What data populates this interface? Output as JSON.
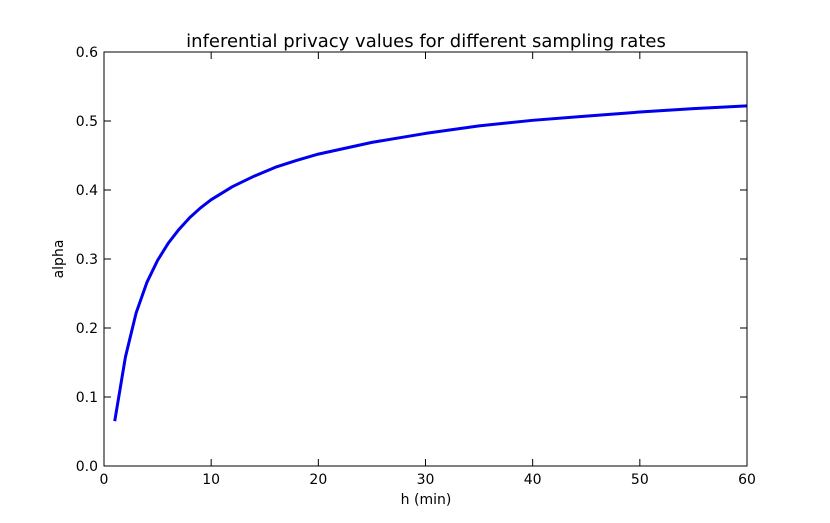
{
  "chart_data": {
    "type": "line",
    "title": "inferential privacy values for different sampling rates",
    "xlabel": "h (min)",
    "ylabel": "alpha",
    "xlim": [
      0,
      60
    ],
    "ylim": [
      0.0,
      0.6
    ],
    "xticks": [
      0,
      10,
      20,
      30,
      40,
      50,
      60
    ],
    "xtick_labels": [
      "0",
      "10",
      "20",
      "30",
      "40",
      "50",
      "60"
    ],
    "yticks": [
      0.0,
      0.1,
      0.2,
      0.3,
      0.4,
      0.5,
      0.6
    ],
    "ytick_labels": [
      "0.0",
      "0.1",
      "0.2",
      "0.3",
      "0.4",
      "0.5",
      "0.6"
    ],
    "grid": false,
    "series_color": "#0000ee",
    "series": [
      {
        "x": [
          1,
          2,
          3,
          4,
          5,
          6,
          7,
          8,
          9,
          10,
          12,
          14,
          16,
          18,
          20,
          25,
          30,
          35,
          40,
          45,
          50,
          55,
          60
        ],
        "values": [
          0.065,
          0.158,
          0.222,
          0.266,
          0.298,
          0.323,
          0.343,
          0.36,
          0.374,
          0.386,
          0.405,
          0.42,
          0.433,
          0.443,
          0.452,
          0.469,
          0.482,
          0.493,
          0.501,
          0.507,
          0.513,
          0.518,
          0.522
        ]
      }
    ]
  }
}
